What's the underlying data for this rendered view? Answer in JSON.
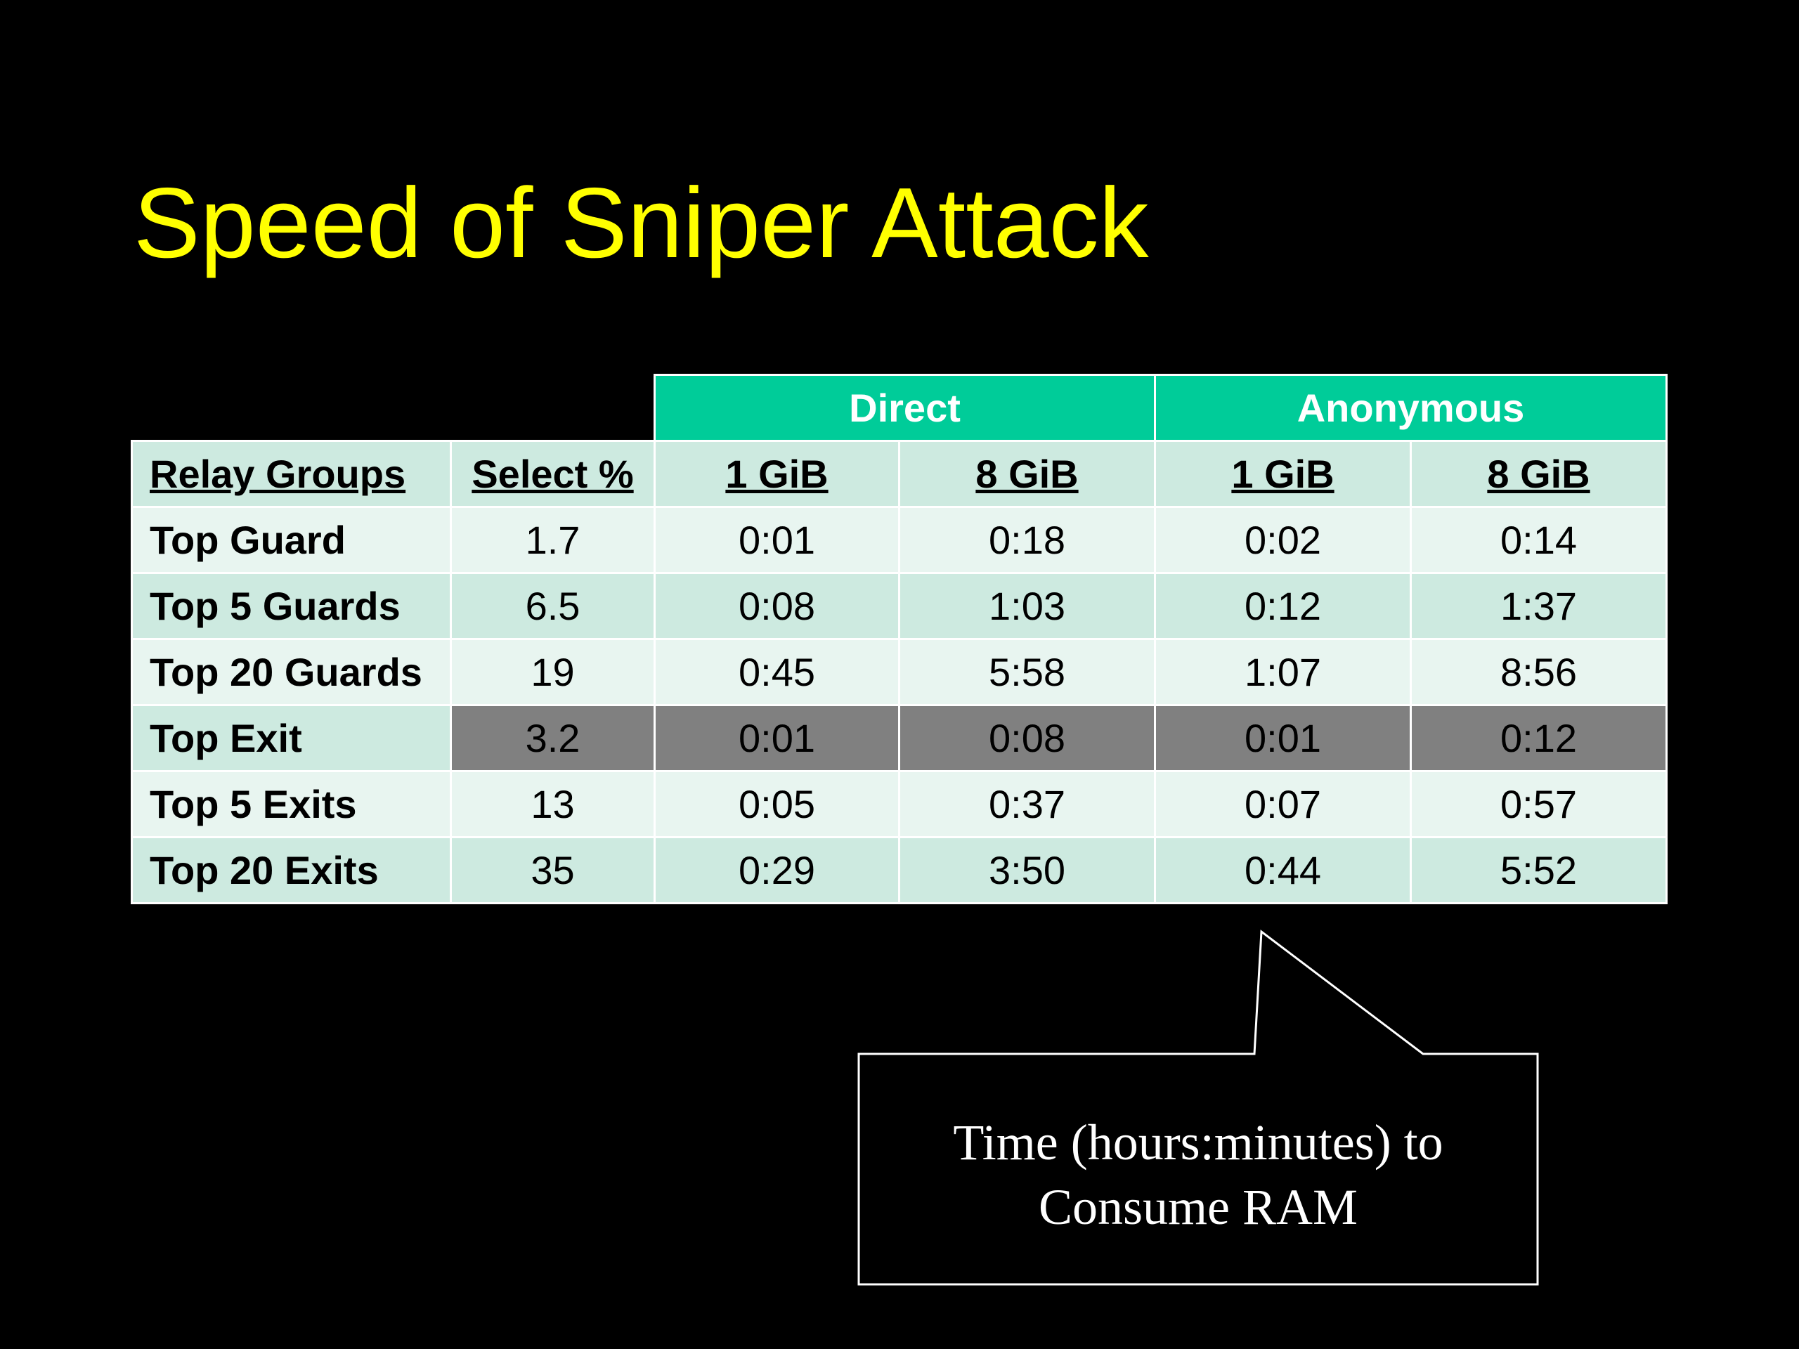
{
  "slide": {
    "title": "Speed of Sniper Attack"
  },
  "table": {
    "groups": [
      {
        "label": "Direct"
      },
      {
        "label": "Anonymous"
      }
    ],
    "headers": [
      "Relay Groups",
      "Select %",
      "1 GiB",
      "8 GiB",
      "1 GiB",
      "8 GiB"
    ],
    "rows": [
      {
        "label": "Top Guard",
        "select": "1.7",
        "direct_1gib": "0:01",
        "direct_8gib": "0:18",
        "anon_1gib": "0:02",
        "anon_8gib": "0:14"
      },
      {
        "label": "Top 5 Guards",
        "select": "6.5",
        "direct_1gib": "0:08",
        "direct_8gib": "1:03",
        "anon_1gib": "0:12",
        "anon_8gib": "1:37"
      },
      {
        "label": "Top 20 Guards",
        "select": "19",
        "direct_1gib": "0:45",
        "direct_8gib": "5:58",
        "anon_1gib": "1:07",
        "anon_8gib": "8:56"
      },
      {
        "label": "Top Exit",
        "select": "3.2",
        "direct_1gib": "0:01",
        "direct_8gib": "0:08",
        "anon_1gib": "0:01",
        "anon_8gib": "0:12"
      },
      {
        "label": "Top 5 Exits",
        "select": "13",
        "direct_1gib": "0:05",
        "direct_8gib": "0:37",
        "anon_1gib": "0:07",
        "anon_8gib": "0:57"
      },
      {
        "label": "Top 20 Exits",
        "select": "35",
        "direct_1gib": "0:29",
        "direct_8gib": "3:50",
        "anon_1gib": "0:44",
        "anon_8gib": "5:52"
      }
    ]
  },
  "callout": {
    "line1": "Time (hours:minutes) to",
    "line2": "Consume RAM"
  },
  "colors": {
    "title": "#ffff00",
    "group_header": "#00cc99",
    "row_dark": "#cdeae0",
    "row_light": "#e8f5f0",
    "highlight": "#808080",
    "background": "#000000"
  }
}
